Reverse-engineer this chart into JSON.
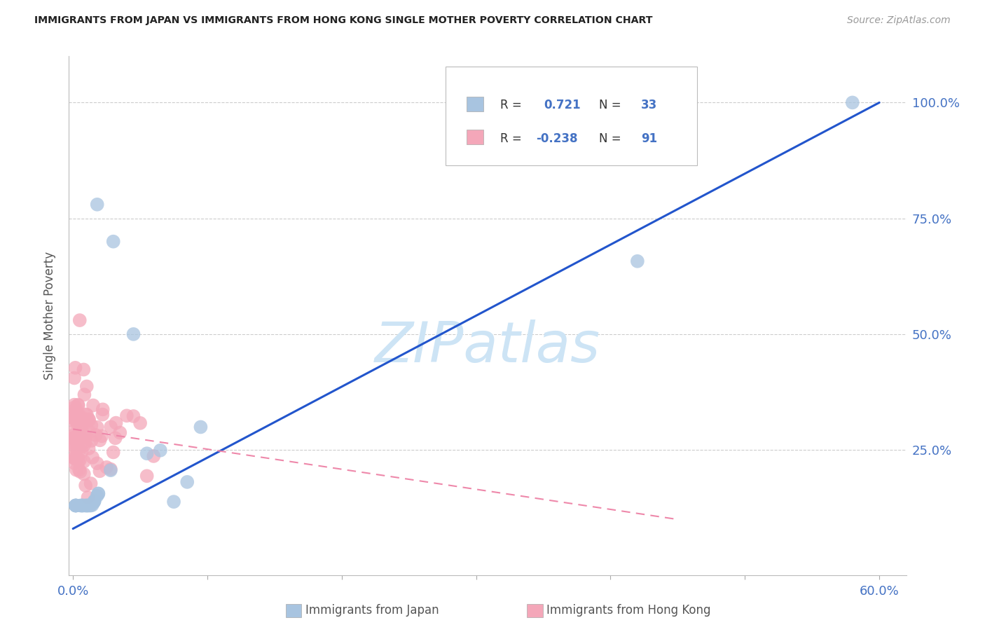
{
  "title": "IMMIGRANTS FROM JAPAN VS IMMIGRANTS FROM HONG KONG SINGLE MOTHER POVERTY CORRELATION CHART",
  "source": "Source: ZipAtlas.com",
  "axis_color": "#4472c4",
  "ylabel": "Single Mother Poverty",
  "xlim": [
    -0.003,
    0.62
  ],
  "ylim": [
    -0.02,
    1.1
  ],
  "japan_color": "#a8c4e0",
  "hk_color": "#f4a7b9",
  "japan_line_color": "#2255cc",
  "hk_line_color": "#ee88aa",
  "japan_R": 0.721,
  "japan_N": 33,
  "hk_R": -0.238,
  "hk_N": 91,
  "watermark_text": "ZIPatlas",
  "watermark_color": "#cde4f5",
  "japan_line_x0": 0.0,
  "japan_line_y0": 0.08,
  "japan_line_x1": 0.6,
  "japan_line_y1": 1.0,
  "hk_line_x0": 0.0,
  "hk_line_y0": 0.295,
  "hk_line_x1": 0.45,
  "hk_line_y1": 0.1,
  "ytick_positions": [
    0.25,
    0.5,
    0.75,
    1.0
  ],
  "ytick_labels": [
    "25.0%",
    "50.0%",
    "75.0%",
    "100.0%"
  ],
  "xtick_positions": [
    0.0,
    0.1,
    0.2,
    0.3,
    0.4,
    0.5,
    0.6
  ],
  "xtick_labels": [
    "0.0%",
    "",
    "",
    "",
    "",
    "",
    "60.0%"
  ]
}
